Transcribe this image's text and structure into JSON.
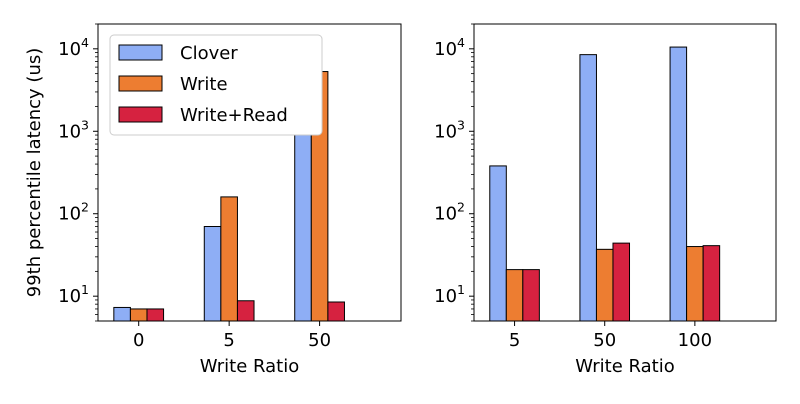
{
  "chart_data": [
    {
      "type": "bar",
      "panel": "left",
      "categories": [
        "0",
        "5",
        "50"
      ],
      "series": [
        {
          "name": "Clover",
          "values": [
            7.3,
            70,
            2500
          ],
          "color": "#8eaef5"
        },
        {
          "name": "Write",
          "values": [
            7.0,
            160,
            5300
          ],
          "color": "#ed7d31"
        },
        {
          "name": "Write+Read",
          "values": [
            7.0,
            8.8,
            8.5
          ],
          "color": "#d62240"
        }
      ],
      "xlabel": "Write Ratio",
      "ylabel": "99th percentile latency (us)",
      "yscale": "log",
      "ylim": [
        5,
        20000
      ],
      "yticks": [
        10,
        100,
        1000,
        10000
      ],
      "legend": "upper left"
    },
    {
      "type": "bar",
      "panel": "right",
      "categories": [
        "5",
        "50",
        "100"
      ],
      "series": [
        {
          "name": "Clover",
          "values": [
            380,
            8500,
            10500
          ],
          "color": "#8eaef5"
        },
        {
          "name": "Write",
          "values": [
            21,
            37,
            40
          ],
          "color": "#ed7d31"
        },
        {
          "name": "Write+Read",
          "values": [
            21,
            44,
            41
          ],
          "color": "#d62240"
        }
      ],
      "xlabel": "Write Ratio",
      "ylabel": "",
      "yscale": "log",
      "ylim": [
        5,
        20000
      ],
      "yticks": [
        10,
        100,
        1000,
        10000
      ],
      "legend": "none"
    }
  ]
}
